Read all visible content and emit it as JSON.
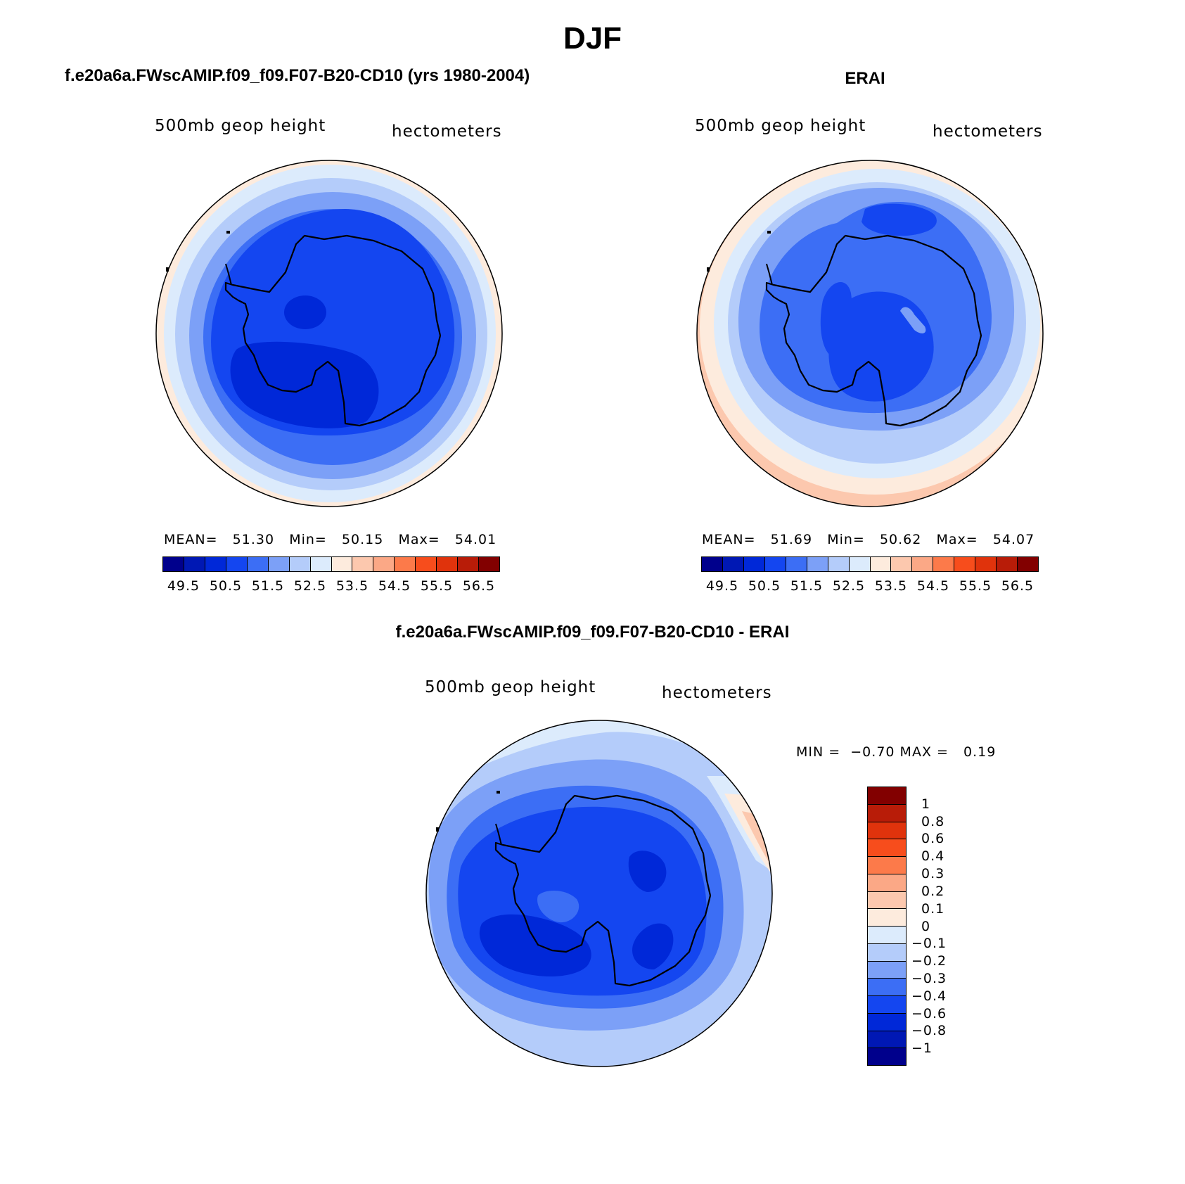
{
  "figure": {
    "season": "DJF",
    "left_title": "f.e20a6a.FWscAMIP.f09_f09.F07-B20-CD10 (yrs 1980-2004)",
    "right_title": "ERAI",
    "diff_title": "f.e20a6a.FWscAMIP.f09_f09.F07-B20-CD10 - ERAI"
  },
  "panels": {
    "model": {
      "variable": "500mb geop height",
      "units": "hectometers",
      "stats": {
        "mean_label": "MEAN=",
        "mean": "51.30",
        "min_label": "Min=",
        "min": "50.15",
        "max_label": "Max=",
        "max": "54.01"
      }
    },
    "obs": {
      "variable": "500mb geop height",
      "units": "hectometers",
      "stats": {
        "mean_label": "MEAN=",
        "mean": "51.69",
        "min_label": "Min=",
        "min": "50.62",
        "max_label": "Max=",
        "max": "54.07"
      }
    },
    "diff": {
      "variable": "500mb geop height",
      "units": "hectometers",
      "stats": {
        "min_label": "MIN =",
        "min": "−0.70",
        "max_label": "MAX =",
        "max": "0.19"
      }
    }
  },
  "colorbars": {
    "field": {
      "colors": [
        "#00008c",
        "#0018b4",
        "#0028d8",
        "#1446f0",
        "#3c6ef5",
        "#7ca0f7",
        "#b4ccfa",
        "#dcebfc",
        "#fdebdd",
        "#fcc8ae",
        "#fba886",
        "#fc7a4a",
        "#f74d1c",
        "#e0330c",
        "#b81c08",
        "#820000"
      ],
      "tick_labels": [
        "49.5",
        "50.5",
        "51.5",
        "52.5",
        "53.5",
        "54.5",
        "55.5",
        "56.5"
      ]
    },
    "diff": {
      "colors_top_to_bottom": [
        "#820000",
        "#b81c08",
        "#e0330c",
        "#f74d1c",
        "#fc7a4a",
        "#fba886",
        "#fcc8ae",
        "#fdebdd",
        "#dcebfc",
        "#b4ccfa",
        "#7ca0f7",
        "#3c6ef5",
        "#1446f0",
        "#0028d8",
        "#0018b4",
        "#00008c"
      ],
      "levels_top_to_bottom": [
        "1",
        "0.8",
        "0.6",
        "0.4",
        "0.3",
        "0.2",
        "0.1",
        "0",
        "−0.1",
        "−0.2",
        "−0.3",
        "−0.4",
        "−0.6",
        "−0.8",
        "−1"
      ]
    }
  },
  "chart_data": [
    {
      "type": "heatmap",
      "projection": "south polar stereographic",
      "title": "f.e20a6a.FWscAMIP.f09_f09.F07-B20-CD10 (yrs 1980-2004)",
      "variable": "500mb geop height",
      "units": "hectometers",
      "mean": 51.3,
      "min": 50.15,
      "max": 54.01,
      "contour_levels": [
        49.5,
        50.0,
        50.5,
        51.0,
        51.5,
        52.0,
        52.5,
        53.0,
        53.5,
        54.0,
        54.5,
        55.0,
        55.5,
        56.0,
        56.5
      ]
    },
    {
      "type": "heatmap",
      "projection": "south polar stereographic",
      "title": "ERAI",
      "variable": "500mb geop height",
      "units": "hectometers",
      "mean": 51.69,
      "min": 50.62,
      "max": 54.07,
      "contour_levels": [
        49.5,
        50.0,
        50.5,
        51.0,
        51.5,
        52.0,
        52.5,
        53.0,
        53.5,
        54.0,
        54.5,
        55.0,
        55.5,
        56.0,
        56.5
      ]
    },
    {
      "type": "heatmap",
      "projection": "south polar stereographic",
      "title": "f.e20a6a.FWscAMIP.f09_f09.F07-B20-CD10 - ERAI",
      "variable": "500mb geop height",
      "units": "hectometers",
      "min": -0.7,
      "max": 0.19,
      "contour_levels": [
        -1,
        -0.8,
        -0.6,
        -0.4,
        -0.3,
        -0.2,
        -0.1,
        0,
        0.1,
        0.2,
        0.3,
        0.4,
        0.6,
        0.8,
        1
      ]
    }
  ]
}
